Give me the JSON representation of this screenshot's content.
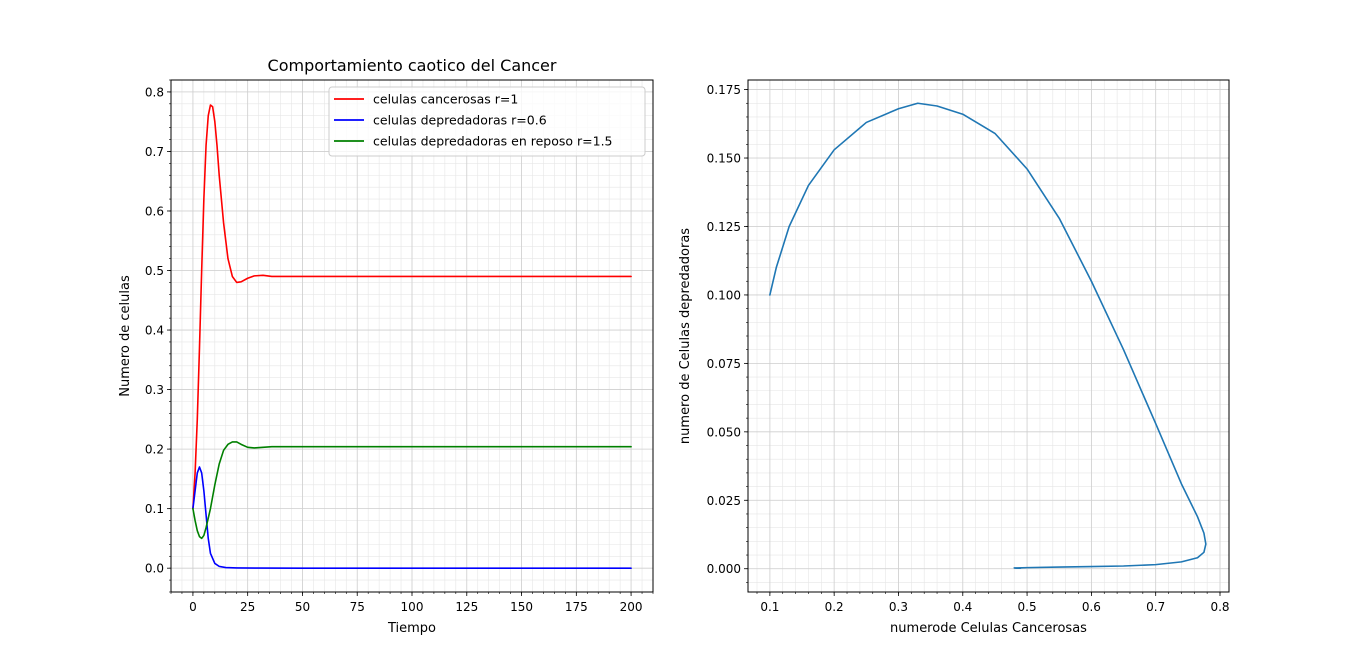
{
  "chart_data": [
    {
      "type": "line",
      "title": "Comportamiento caotico del Cancer",
      "xlabel": "Tiempo",
      "ylabel": "Numero de celulas",
      "xlim": [
        -10,
        210
      ],
      "ylim": [
        -0.04,
        0.82
      ],
      "xticks": [
        0,
        25,
        50,
        75,
        100,
        125,
        150,
        175,
        200
      ],
      "xtick_labels": [
        "0",
        "25",
        "50",
        "75",
        "100",
        "125",
        "150",
        "175",
        "200"
      ],
      "yticks": [
        0.0,
        0.1,
        0.2,
        0.3,
        0.4,
        0.5,
        0.6,
        0.7,
        0.8
      ],
      "ytick_labels": [
        "0.0",
        "0.1",
        "0.2",
        "0.3",
        "0.4",
        "0.5",
        "0.6",
        "0.7",
        "0.8"
      ],
      "grid": true,
      "minor_grid": true,
      "legend": "top-right",
      "series": [
        {
          "name": "celulas cancerosas r=1",
          "color": "#ff0000",
          "points": [
            [
              0,
              0.1
            ],
            [
              1,
              0.16
            ],
            [
              2,
              0.25
            ],
            [
              3,
              0.37
            ],
            [
              4,
              0.5
            ],
            [
              5,
              0.62
            ],
            [
              6,
              0.71
            ],
            [
              7,
              0.76
            ],
            [
              8,
              0.778
            ],
            [
              9,
              0.775
            ],
            [
              10,
              0.75
            ],
            [
              11,
              0.71
            ],
            [
              12,
              0.66
            ],
            [
              14,
              0.58
            ],
            [
              16,
              0.52
            ],
            [
              18,
              0.49
            ],
            [
              20,
              0.48
            ],
            [
              22,
              0.481
            ],
            [
              25,
              0.487
            ],
            [
              28,
              0.491
            ],
            [
              32,
              0.492
            ],
            [
              36,
              0.49
            ],
            [
              40,
              0.49
            ],
            [
              60,
              0.49
            ],
            [
              100,
              0.49
            ],
            [
              150,
              0.49
            ],
            [
              200,
              0.49
            ]
          ]
        },
        {
          "name": "celulas depredadoras r=0.6",
          "color": "#0000ff",
          "points": [
            [
              0,
              0.1
            ],
            [
              1,
              0.13
            ],
            [
              2,
              0.16
            ],
            [
              3,
              0.17
            ],
            [
              4,
              0.16
            ],
            [
              5,
              0.13
            ],
            [
              6,
              0.09
            ],
            [
              7,
              0.05
            ],
            [
              8,
              0.025
            ],
            [
              10,
              0.008
            ],
            [
              12,
              0.003
            ],
            [
              15,
              0.001
            ],
            [
              20,
              0.0005
            ],
            [
              30,
              0.0002
            ],
            [
              50,
              0.0
            ],
            [
              100,
              0.0
            ],
            [
              150,
              0.0
            ],
            [
              200,
              0.0
            ]
          ]
        },
        {
          "name": "celulas depredadoras en reposo r=1.5",
          "color": "#008000",
          "points": [
            [
              0,
              0.1
            ],
            [
              1,
              0.08
            ],
            [
              2,
              0.063
            ],
            [
              3,
              0.053
            ],
            [
              4,
              0.05
            ],
            [
              5,
              0.055
            ],
            [
              6,
              0.068
            ],
            [
              8,
              0.1
            ],
            [
              10,
              0.14
            ],
            [
              12,
              0.175
            ],
            [
              14,
              0.198
            ],
            [
              16,
              0.208
            ],
            [
              18,
              0.212
            ],
            [
              20,
              0.212
            ],
            [
              22,
              0.208
            ],
            [
              25,
              0.203
            ],
            [
              28,
              0.202
            ],
            [
              32,
              0.203
            ],
            [
              36,
              0.204
            ],
            [
              40,
              0.204
            ],
            [
              60,
              0.204
            ],
            [
              100,
              0.204
            ],
            [
              150,
              0.204
            ],
            [
              200,
              0.204
            ]
          ]
        }
      ]
    },
    {
      "type": "line",
      "title": "",
      "xlabel": "numerode Celulas Cancerosas",
      "ylabel": "numero de Celulas depredadoras",
      "xlim": [
        0.066,
        0.814
      ],
      "ylim": [
        -0.0085,
        0.1785
      ],
      "xticks": [
        0.1,
        0.2,
        0.3,
        0.4,
        0.5,
        0.6,
        0.7,
        0.8
      ],
      "xtick_labels": [
        "0.1",
        "0.2",
        "0.3",
        "0.4",
        "0.5",
        "0.6",
        "0.7",
        "0.8"
      ],
      "yticks": [
        0.0,
        0.025,
        0.05,
        0.075,
        0.1,
        0.125,
        0.15,
        0.175
      ],
      "ytick_labels": [
        "0.000",
        "0.025",
        "0.050",
        "0.075",
        "0.100",
        "0.125",
        "0.150",
        "0.175"
      ],
      "grid": true,
      "minor_grid": true,
      "series": [
        {
          "color": "#1f77b4",
          "points": [
            [
              0.1,
              0.1
            ],
            [
              0.11,
              0.11
            ],
            [
              0.13,
              0.125
            ],
            [
              0.16,
              0.14
            ],
            [
              0.2,
              0.153
            ],
            [
              0.25,
              0.163
            ],
            [
              0.3,
              0.168
            ],
            [
              0.33,
              0.17
            ],
            [
              0.36,
              0.169
            ],
            [
              0.4,
              0.166
            ],
            [
              0.45,
              0.159
            ],
            [
              0.5,
              0.146
            ],
            [
              0.55,
              0.128
            ],
            [
              0.6,
              0.105
            ],
            [
              0.65,
              0.08
            ],
            [
              0.7,
              0.053
            ],
            [
              0.74,
              0.031
            ],
            [
              0.765,
              0.019
            ],
            [
              0.775,
              0.013
            ],
            [
              0.778,
              0.009
            ],
            [
              0.775,
              0.006
            ],
            [
              0.765,
              0.004
            ],
            [
              0.74,
              0.0025
            ],
            [
              0.7,
              0.0015
            ],
            [
              0.65,
              0.001
            ],
            [
              0.6,
              0.0008
            ],
            [
              0.55,
              0.0006
            ],
            [
              0.5,
              0.0004
            ],
            [
              0.485,
              0.0003
            ],
            [
              0.48,
              0.0003
            ],
            [
              0.483,
              0.0002
            ],
            [
              0.488,
              0.0002
            ],
            [
              0.49,
              0.0002
            ]
          ]
        }
      ]
    }
  ]
}
